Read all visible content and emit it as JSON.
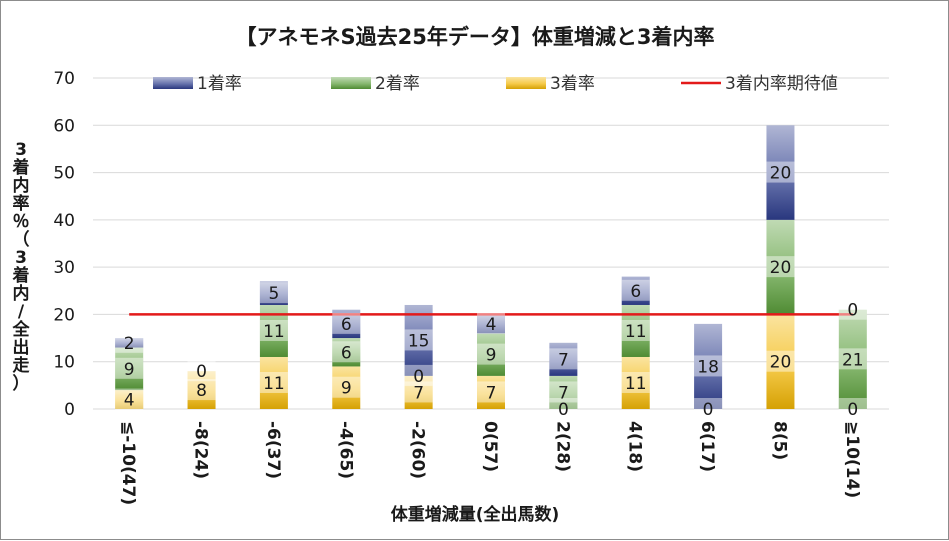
{
  "chart_data": {
    "type": "bar",
    "stacked": true,
    "title": "【アネモネS過去25年データ】体重増減と3着内率",
    "xlabel": "体重増減量(全出馬数)",
    "ylabel": "3着内率％（3着内/全出走）",
    "ylim": [
      0,
      70
    ],
    "yticks": [
      "0",
      "10",
      "20",
      "30",
      "40",
      "50",
      "60",
      "70"
    ],
    "grid": true,
    "legend_position": "top",
    "categories": [
      "≦-10(47)",
      "-8(24)",
      "-6(37)",
      "-4(65)",
      "-2(60)",
      "0(57)",
      "2(28)",
      "4(18)",
      "6(17)",
      "8(5)",
      "≧10(14)"
    ],
    "series": [
      {
        "name": "3着率",
        "color": "#f2b705",
        "values": [
          4,
          8,
          11,
          9,
          7,
          7,
          0,
          11,
          0,
          20,
          0
        ],
        "labels": [
          "4",
          "8",
          "11",
          "9",
          "7",
          "7",
          "0",
          "11",
          "0",
          "20",
          "0"
        ]
      },
      {
        "name": "2着率",
        "color": "#5a9e3a",
        "values": [
          9,
          0,
          11,
          6,
          0,
          9,
          7,
          11,
          0,
          20,
          21
        ],
        "labels": [
          "9",
          "",
          "11",
          "6",
          "0",
          "9",
          "7",
          "11",
          "",
          "20",
          "21"
        ]
      },
      {
        "name": "1着率",
        "color": "#2f3f8f",
        "values": [
          2,
          0,
          5,
          6,
          15,
          4,
          7,
          6,
          18,
          20,
          0
        ],
        "labels": [
          "2",
          "0",
          "5",
          "6",
          "15",
          "4",
          "7",
          "6",
          "18",
          "20",
          "0"
        ]
      }
    ],
    "reference_line": {
      "name": "3着内率期待値",
      "value": 20,
      "color": "#e31a1a"
    }
  }
}
